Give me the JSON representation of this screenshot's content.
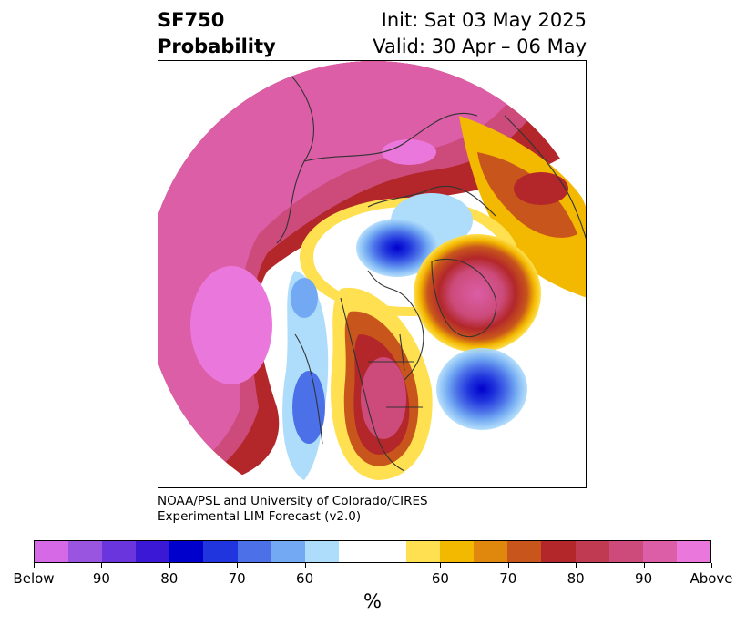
{
  "header": {
    "title_line1": "SF750",
    "title_line2": "Probability",
    "init": "Init: Sat 03 May 2025",
    "valid": "Valid: 30 Apr – 06 May"
  },
  "credit": {
    "line1": "NOAA/PSL and University of Colorado/CIRES",
    "line2": "Experimental LIM Forecast (v2.0)"
  },
  "colorbar": {
    "colors": [
      "#d66ae6",
      "#9a55e0",
      "#6a35dc",
      "#3a18d6",
      "#0000cc",
      "#2035dd",
      "#4b70e8",
      "#72a9f2",
      "#aedcfb",
      "#ffffff",
      "#ffffff",
      "#fee050",
      "#f3b800",
      "#e0870e",
      "#c8561c",
      "#b3272a",
      "#c03a52",
      "#cc4b7b",
      "#db5ea6",
      "#ea78dc"
    ],
    "tick_labels": [
      "Below",
      "90",
      "80",
      "70",
      "60",
      "60",
      "70",
      "80",
      "90",
      "Above"
    ],
    "unit": "%"
  },
  "legend_colors": {
    "below_extreme": "#d66ae6",
    "below_strong": "#0000cc",
    "below_weak": "#aedcfb",
    "neutral": "#ffffff",
    "above_weak": "#fee050",
    "above_strong": "#b3272a",
    "above_extreme": "#ea78dc"
  }
}
